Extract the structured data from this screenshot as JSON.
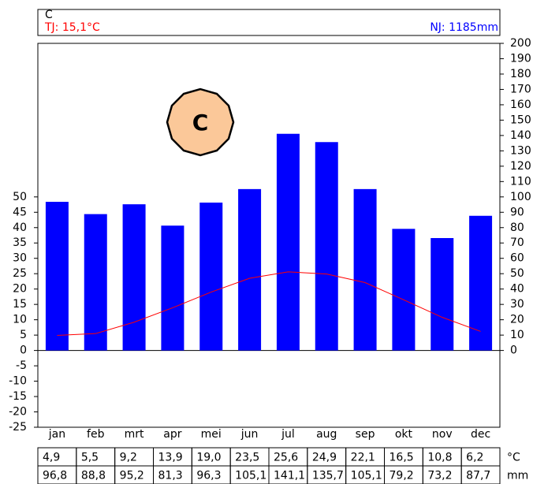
{
  "chart_data": {
    "type": "combo",
    "title": "C",
    "subtitle_left": "TJ: 15,1°C",
    "subtitle_right": "NJ: 1185mm",
    "badge": "C",
    "categories": [
      "jan",
      "feb",
      "mrt",
      "apr",
      "mei",
      "jun",
      "jul",
      "aug",
      "sep",
      "okt",
      "nov",
      "dec"
    ],
    "series": [
      {
        "type": "line",
        "axis": "y",
        "color": "#ff0000",
        "unit": "°C",
        "values": [
          4.9,
          5.5,
          9.2,
          13.9,
          19.0,
          23.5,
          25.6,
          24.9,
          22.1,
          16.5,
          10.8,
          6.2
        ],
        "value_labels": [
          "4,9",
          "5,5",
          "9,2",
          "13,9",
          "19,0",
          "23,5",
          "25,6",
          "24,9",
          "22,1",
          "16,5",
          "10,8",
          "6,2"
        ]
      },
      {
        "type": "bar",
        "axis": "y2",
        "color": "#0000ff",
        "unit": "mm",
        "values": [
          96.8,
          88.8,
          95.2,
          81.3,
          96.3,
          105.1,
          141.1,
          135.7,
          105.1,
          79.2,
          73.2,
          87.7
        ],
        "value_labels": [
          "96,8",
          "88,8",
          "95,2",
          "81,3",
          "96,3",
          "105,1",
          "141,1",
          "135,7",
          "105,1",
          "79,2",
          "73,2",
          "87,7"
        ]
      }
    ],
    "ylim": [
      -25,
      100
    ],
    "yticks": [
      -25,
      -20,
      -15,
      -10,
      -5,
      0,
      5,
      10,
      15,
      20,
      25,
      30,
      35,
      40,
      45,
      50
    ],
    "y2lim": [
      -50,
      200
    ],
    "y2ticks": [
      0,
      10,
      20,
      30,
      40,
      50,
      60,
      70,
      80,
      90,
      100,
      110,
      120,
      130,
      140,
      150,
      160,
      170,
      180,
      190,
      200
    ],
    "grid": false
  }
}
